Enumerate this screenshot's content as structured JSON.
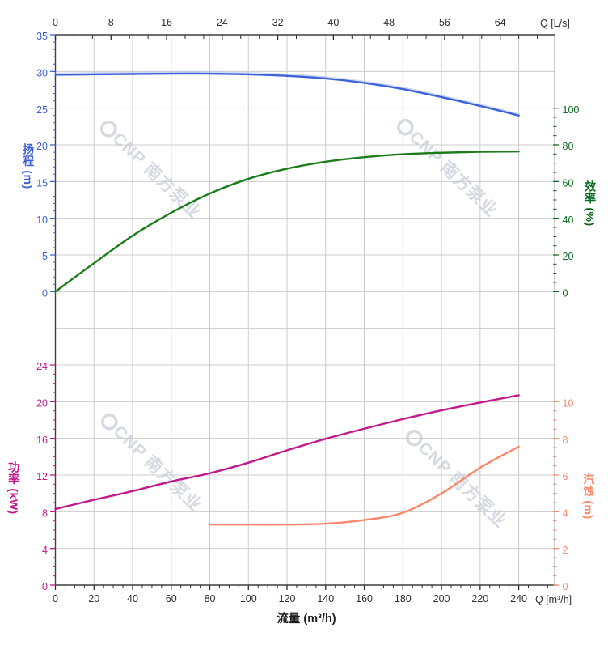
{
  "chart_data": {
    "type": "line",
    "description": "Pump performance curves: head, efficiency, power, NPSH vs flow",
    "x_bottom": {
      "title": "流量 (m³/h)",
      "unit_label": "Q [m³/h]",
      "ticks": [
        0,
        20,
        40,
        60,
        80,
        100,
        120,
        140,
        160,
        180,
        200,
        220,
        240
      ],
      "minor_step": 5,
      "max": 258.6,
      "color": "#2d2d2d"
    },
    "x_top": {
      "unit_label": "Q [L/s]",
      "ticks": [
        0,
        8,
        16,
        24,
        32,
        40,
        48,
        56,
        64
      ],
      "minor_step": 2.6667,
      "max": 71.83,
      "color": "#2d2d2d"
    },
    "y_left_head": {
      "title": "扬程 (m)",
      "ticks": [
        0,
        5,
        10,
        15,
        20,
        25,
        30,
        35
      ],
      "minor_step": 1,
      "range": [
        0,
        35
      ],
      "color": "#3E63D8"
    },
    "y_right_eff": {
      "title": "效率 (%)",
      "ticks": [
        0,
        20,
        40,
        60,
        80,
        100
      ],
      "minor_step": 5,
      "range": [
        0,
        140
      ],
      "color": "#0c6b20"
    },
    "y_left_power": {
      "title": "功率 (kW)",
      "ticks": [
        0,
        4,
        8,
        12,
        16,
        20,
        24
      ],
      "minor_step": 1,
      "range": [
        0,
        28
      ],
      "color": "#C2188C"
    },
    "y_right_npsh": {
      "title": "汽蚀 (m)",
      "ticks": [
        0,
        2,
        4,
        6,
        8,
        10
      ],
      "minor_step": 0.5,
      "range": [
        0,
        14
      ],
      "color": "#F9886C"
    },
    "series": [
      {
        "name": "head-curve",
        "yscale": "head",
        "color": "#3E63D8",
        "halo": "#aabfee",
        "x": [
          0,
          20,
          40,
          60,
          80,
          100,
          120,
          140,
          160,
          180,
          200,
          220,
          240
        ],
        "y": [
          29.55,
          29.6,
          29.65,
          29.7,
          29.7,
          29.6,
          29.4,
          29.05,
          28.45,
          27.6,
          26.5,
          25.3,
          24.0
        ]
      },
      {
        "name": "efficiency-curve",
        "yscale": "eff",
        "color": "#1a7d1a",
        "x": [
          0,
          20,
          40,
          60,
          80,
          100,
          120,
          140,
          160,
          180,
          200,
          220,
          240
        ],
        "y": [
          0,
          15.5,
          30.5,
          43,
          53.5,
          61.5,
          67,
          70.8,
          73.3,
          74.9,
          75.7,
          76.2,
          76.4
        ]
      },
      {
        "name": "power-curve",
        "yscale": "power",
        "color": "#C2188C",
        "x": [
          0,
          20,
          40,
          60,
          80,
          100,
          120,
          140,
          160,
          180,
          200,
          220,
          240
        ],
        "y": [
          8.3,
          9.3,
          10.25,
          11.3,
          12.2,
          13.35,
          14.7,
          15.95,
          17.05,
          18.1,
          19.05,
          19.9,
          20.7
        ]
      },
      {
        "name": "npsh-curve",
        "yscale": "npsh",
        "color": "#F9886C",
        "x": [
          80,
          100,
          120,
          140,
          160,
          180,
          200,
          220,
          240
        ],
        "y": [
          3.3,
          3.3,
          3.3,
          3.35,
          3.55,
          3.95,
          5.0,
          6.4,
          7.55
        ]
      }
    ],
    "watermark": {
      "text": "CNP 南方泵业",
      "color": "#c3c9d4"
    },
    "grid_color": "#cccccc",
    "frame_color": "#3f3f3f",
    "right_frame_color": "#ababab"
  }
}
